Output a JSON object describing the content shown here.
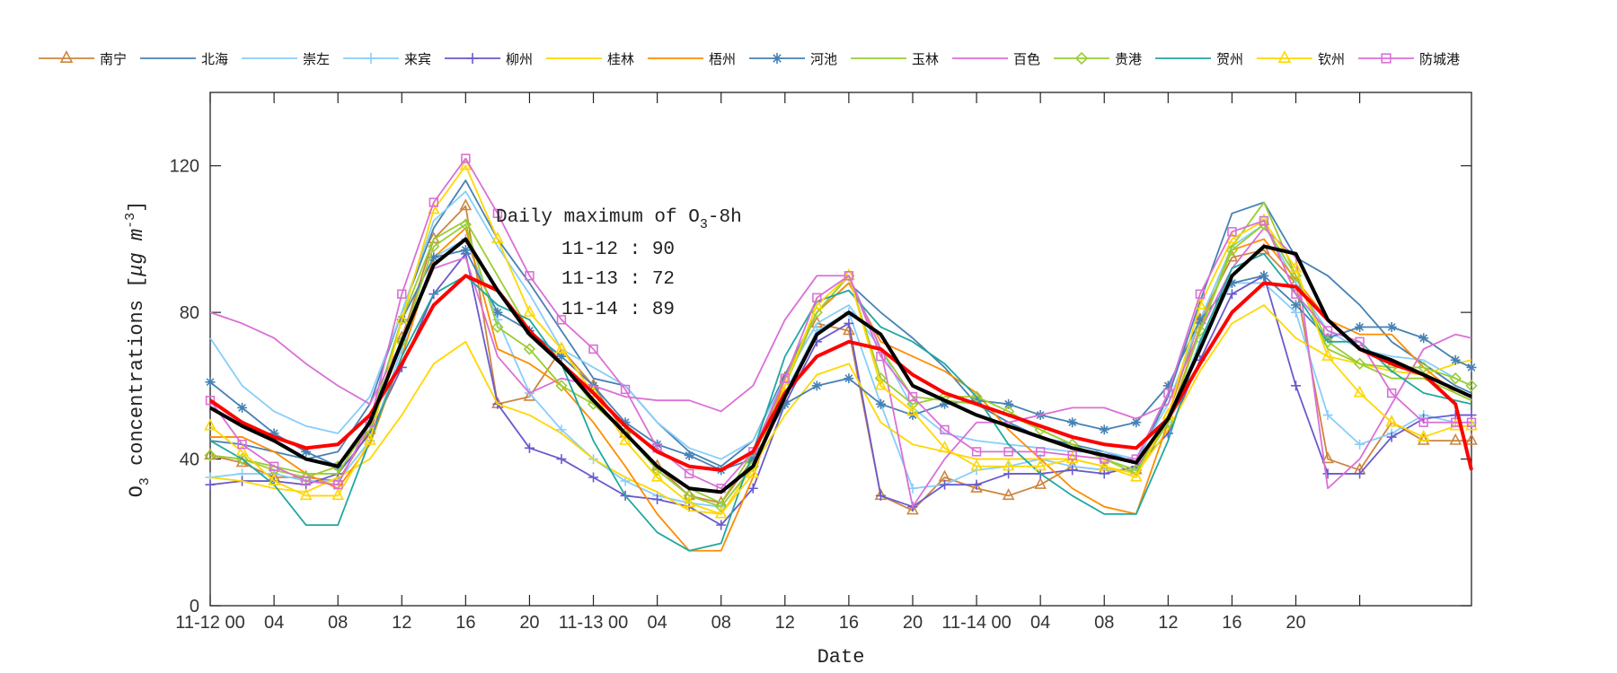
{
  "chart_data": {
    "type": "line",
    "xlabel": "Date",
    "ylabel": {
      "main": "O",
      "sub": "3",
      "rest": " concentrations [",
      "mu": "μg m",
      "sup": "-3",
      "end": "]"
    },
    "ylim": [
      0,
      140
    ],
    "xlim": [
      0,
      79
    ],
    "yticks": [
      0,
      40,
      80,
      120
    ],
    "xticks": [
      0,
      4,
      8,
      12,
      16,
      20,
      24,
      28,
      32,
      36,
      40,
      44,
      48,
      52,
      56,
      60,
      64,
      68,
      72
    ],
    "xtick_labels": [
      "11-12 00",
      "04",
      "08",
      "12",
      "16",
      "20",
      "11-13 00",
      "04",
      "08",
      "12",
      "16",
      "20",
      "11-14 00",
      "04",
      "08",
      "12",
      "16",
      "20",
      ""
    ],
    "grid": false,
    "legend_placement": "top",
    "annotation": {
      "title_pre": "Daily maximum of O",
      "title_sub": "3",
      "title_post": "-8h",
      "lines": [
        "11-12 : 90",
        "11-13 : 72",
        "11-14 : 89"
      ]
    },
    "x": [
      0,
      2,
      4,
      6,
      8,
      10,
      12,
      14,
      16,
      18,
      20,
      22,
      24,
      26,
      28,
      30,
      32,
      34,
      36,
      38,
      40,
      42,
      44,
      46,
      48,
      50,
      52,
      54,
      56,
      58,
      60,
      62,
      64,
      66,
      68,
      70,
      72,
      74,
      76,
      78,
      79
    ],
    "series": [
      {
        "name": "南宁",
        "color": "#cd853f",
        "marker": "triangle",
        "values": [
          41,
          39,
          35,
          35,
          34,
          48,
          73,
          100,
          109,
          55,
          57,
          70,
          60,
          47,
          38,
          30,
          28,
          40,
          62,
          77,
          75,
          30,
          26,
          35,
          32,
          30,
          33,
          38,
          37,
          37,
          52,
          78,
          95,
          97,
          88,
          40,
          37,
          50,
          45,
          45,
          45
        ]
      },
      {
        "name": "北海",
        "color": "#4682b4",
        "marker": "none",
        "values": [
          45,
          44,
          42,
          40,
          42,
          55,
          80,
          103,
          116,
          100,
          88,
          75,
          62,
          60,
          50,
          42,
          38,
          45,
          63,
          80,
          88,
          80,
          73,
          65,
          55,
          50,
          46,
          44,
          42,
          39,
          57,
          83,
          107,
          110,
          95,
          90,
          82,
          72,
          66,
          60,
          58
        ]
      },
      {
        "name": "崇左",
        "color": "#87cefa",
        "marker": "none",
        "values": [
          73,
          60,
          53,
          49,
          47,
          57,
          80,
          105,
          113,
          98,
          85,
          70,
          65,
          60,
          50,
          43,
          40,
          45,
          62,
          77,
          82,
          70,
          54,
          47,
          45,
          44,
          43,
          42,
          42,
          40,
          55,
          78,
          98,
          104,
          88,
          75,
          70,
          68,
          67,
          62,
          60
        ]
      },
      {
        "name": "来宾",
        "color": "#87cefa",
        "marker": "plus",
        "values": [
          35,
          36,
          36,
          34,
          34,
          45,
          70,
          95,
          100,
          78,
          58,
          48,
          40,
          34,
          30,
          28,
          27,
          38,
          58,
          75,
          80,
          55,
          32,
          33,
          37,
          38,
          40,
          38,
          37,
          37,
          50,
          72,
          88,
          88,
          80,
          52,
          44,
          47,
          52,
          50,
          50
        ]
      },
      {
        "name": "柳州",
        "color": "#6a5acd",
        "marker": "plus",
        "values": [
          33,
          34,
          34,
          33,
          36,
          47,
          65,
          85,
          96,
          55,
          43,
          40,
          35,
          30,
          29,
          27,
          22,
          32,
          55,
          72,
          77,
          30,
          27,
          33,
          33,
          36,
          36,
          37,
          36,
          38,
          47,
          67,
          85,
          90,
          60,
          36,
          36,
          46,
          51,
          52,
          52
        ]
      },
      {
        "name": "桂林",
        "color": "#ffd700",
        "marker": "none",
        "values": [
          35,
          34,
          32,
          31,
          35,
          40,
          52,
          66,
          72,
          55,
          52,
          47,
          40,
          35,
          31,
          26,
          25,
          38,
          52,
          63,
          66,
          50,
          44,
          42,
          40,
          40,
          40,
          40,
          38,
          36,
          48,
          64,
          77,
          82,
          73,
          68,
          66,
          64,
          63,
          66,
          67
        ]
      },
      {
        "name": "梧州",
        "color": "#ff8c00",
        "marker": "none",
        "values": [
          46,
          46,
          42,
          36,
          32,
          44,
          68,
          95,
          103,
          70,
          66,
          60,
          50,
          38,
          25,
          15,
          15,
          35,
          62,
          80,
          88,
          72,
          68,
          64,
          58,
          48,
          40,
          32,
          27,
          25,
          50,
          76,
          97,
          100,
          89,
          78,
          74,
          74,
          65,
          58,
          56
        ]
      },
      {
        "name": "河池",
        "color": "#4682b4",
        "marker": "asterisk",
        "values": [
          61,
          54,
          47,
          42,
          38,
          50,
          78,
          95,
          97,
          80,
          75,
          68,
          60,
          50,
          44,
          41,
          37,
          40,
          55,
          60,
          62,
          55,
          52,
          55,
          56,
          55,
          52,
          50,
          48,
          50,
          60,
          78,
          88,
          90,
          82,
          73,
          76,
          76,
          73,
          67,
          65
        ]
      },
      {
        "name": "玉林",
        "color": "#9acd32",
        "marker": "none",
        "values": [
          41,
          40,
          38,
          36,
          36,
          50,
          78,
          100,
          105,
          90,
          75,
          66,
          55,
          47,
          38,
          32,
          28,
          42,
          62,
          80,
          90,
          70,
          57,
          56,
          55,
          52,
          48,
          44,
          40,
          36,
          50,
          75,
          98,
          110,
          90,
          70,
          66,
          62,
          62,
          58,
          56
        ]
      },
      {
        "name": "百色",
        "color": "#da70d6",
        "marker": "none",
        "values": [
          80,
          77,
          73,
          66,
          60,
          55,
          72,
          92,
          95,
          68,
          58,
          62,
          60,
          57,
          56,
          56,
          53,
          60,
          78,
          90,
          90,
          70,
          27,
          40,
          50,
          50,
          52,
          54,
          54,
          51,
          55,
          75,
          92,
          103,
          95,
          32,
          40,
          55,
          70,
          74,
          73
        ]
      },
      {
        "name": "贵港",
        "color": "#9acd32",
        "marker": "diamond",
        "values": [
          41,
          40,
          37,
          35,
          38,
          48,
          72,
          98,
          104,
          76,
          70,
          60,
          55,
          47,
          37,
          30,
          27,
          38,
          60,
          80,
          90,
          62,
          55,
          57,
          57,
          53,
          48,
          44,
          40,
          37,
          50,
          75,
          97,
          104,
          90,
          72,
          66,
          65,
          65,
          62,
          60
        ]
      },
      {
        "name": "贺州",
        "color": "#20a8a0",
        "marker": "none",
        "values": [
          45,
          40,
          33,
          22,
          22,
          45,
          68,
          85,
          90,
          82,
          78,
          66,
          45,
          30,
          20,
          15,
          17,
          42,
          68,
          83,
          86,
          76,
          72,
          66,
          57,
          44,
          36,
          30,
          25,
          25,
          45,
          72,
          92,
          96,
          85,
          72,
          72,
          64,
          58,
          56,
          55
        ]
      },
      {
        "name": "钦州",
        "color": "#ffd700",
        "marker": "triangle",
        "values": [
          49,
          42,
          34,
          30,
          30,
          45,
          78,
          108,
          120,
          100,
          80,
          70,
          58,
          45,
          35,
          28,
          25,
          36,
          60,
          82,
          90,
          60,
          53,
          43,
          38,
          38,
          38,
          40,
          38,
          35,
          52,
          82,
          100,
          105,
          92,
          68,
          58,
          50,
          46,
          49,
          49
        ]
      },
      {
        "name": "防城港",
        "color": "#da70d6",
        "marker": "square",
        "values": [
          56,
          44,
          38,
          34,
          33,
          50,
          85,
          110,
          122,
          107,
          90,
          78,
          70,
          59,
          43,
          36,
          32,
          42,
          62,
          84,
          90,
          68,
          57,
          48,
          42,
          42,
          42,
          41,
          40,
          40,
          58,
          85,
          102,
          105,
          85,
          75,
          72,
          58,
          50,
          50,
          50
        ]
      },
      {
        "color": "#ff0000",
        "width": "thick",
        "marker": "none",
        "values": [
          56,
          50,
          46,
          43,
          44,
          52,
          66,
          82,
          90,
          86,
          75,
          66,
          58,
          49,
          42,
          38,
          37,
          42,
          58,
          68,
          72,
          70,
          63,
          58,
          55,
          52,
          49,
          46,
          44,
          43,
          51,
          66,
          80,
          88,
          87,
          78,
          70,
          66,
          63,
          55,
          37
        ]
      },
      {
        "color": "#000000",
        "width": "thick",
        "marker": "none",
        "values": [
          54,
          49,
          45,
          40,
          38,
          50,
          72,
          93,
          100,
          86,
          74,
          66,
          56,
          47,
          38,
          32,
          31,
          38,
          57,
          74,
          80,
          74,
          60,
          56,
          52,
          49,
          46,
          43,
          41,
          39,
          51,
          70,
          90,
          98,
          96,
          78,
          70,
          67,
          63,
          59,
          57
        ]
      }
    ]
  }
}
